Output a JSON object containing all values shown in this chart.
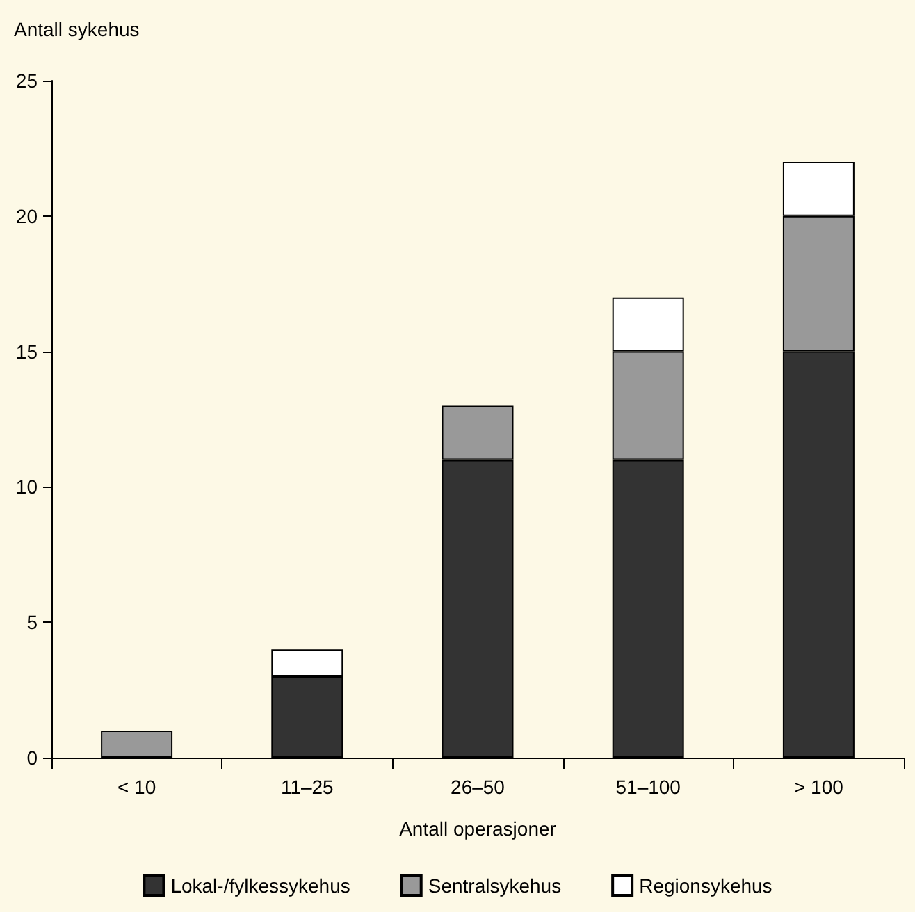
{
  "chart_data": {
    "type": "bar",
    "stacked": true,
    "xlabel": "Antall operasjoner",
    "ylabel": "Antall sykehus",
    "categories": [
      "< 10",
      "11–25",
      "26–50",
      "51–100",
      "> 100"
    ],
    "series": [
      {
        "name": "Lokal-/fylkessykehus",
        "color": "#333333",
        "values": [
          0,
          3,
          11,
          11,
          15
        ]
      },
      {
        "name": "Sentralsykehus",
        "color": "#999999",
        "values": [
          1,
          0,
          2,
          4,
          5
        ]
      },
      {
        "name": "Regionsykehus",
        "color": "#ffffff",
        "values": [
          0,
          1,
          0,
          2,
          2
        ]
      }
    ],
    "ylim": [
      0,
      25
    ],
    "yticks": [
      0,
      5,
      10,
      15,
      20,
      25
    ],
    "grid": false,
    "legend": "bottom"
  }
}
